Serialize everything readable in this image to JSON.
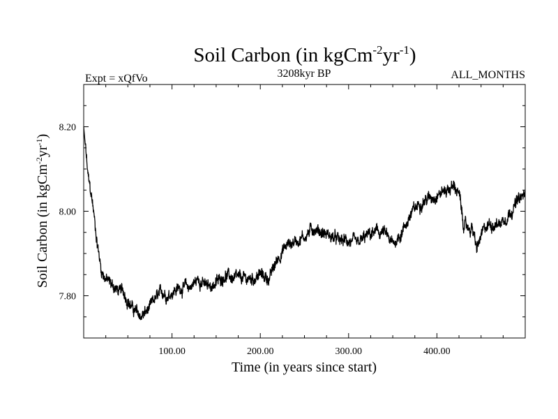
{
  "chart_data": {
    "type": "line",
    "title_main": "Soil Carbon (in kgCm",
    "title_sup1": "-2",
    "title_mid": "yr",
    "title_sup2": "-1",
    "title_end": ")",
    "subtitle_left": "Expt = xQfVo",
    "subtitle_center": "3208kyr BP",
    "subtitle_right": "ALL_MONTHS",
    "xlabel": "Time (in years since start)",
    "ylabel_main": "Soil Carbon (in kgCm",
    "ylabel_sup1": "-2",
    "ylabel_mid": "yr",
    "ylabel_sup2": "-1",
    "ylabel_end": ")",
    "xlim": [
      0,
      500
    ],
    "ylim": [
      7.7,
      8.3
    ],
    "x_ticks_labeled": [
      100,
      200,
      300,
      400
    ],
    "x_tick_labels": [
      "100.00",
      "200.00",
      "300.00",
      "400.00"
    ],
    "y_ticks_labeled": [
      7.8,
      8.0,
      8.2
    ],
    "y_tick_labels": [
      "7.80",
      "8.00",
      "8.20"
    ],
    "series": [
      {
        "name": "Soil Carbon",
        "color": "#000000",
        "x": [
          0,
          5,
          10,
          15,
          20,
          25,
          30,
          35,
          40,
          45,
          50,
          55,
          60,
          65,
          70,
          75,
          80,
          85,
          90,
          95,
          100,
          110,
          120,
          130,
          140,
          150,
          160,
          170,
          180,
          190,
          200,
          210,
          220,
          230,
          240,
          250,
          260,
          270,
          280,
          290,
          300,
          310,
          320,
          330,
          340,
          350,
          360,
          370,
          380,
          390,
          400,
          410,
          420,
          425,
          430,
          435,
          440,
          445,
          450,
          455,
          460,
          470,
          480,
          490,
          500
        ],
        "y": [
          8.2,
          8.08,
          8.02,
          7.93,
          7.86,
          7.84,
          7.83,
          7.82,
          7.81,
          7.81,
          7.79,
          7.77,
          7.76,
          7.75,
          7.76,
          7.77,
          7.79,
          7.8,
          7.81,
          7.8,
          7.81,
          7.82,
          7.82,
          7.84,
          7.82,
          7.83,
          7.85,
          7.84,
          7.84,
          7.84,
          7.85,
          7.84,
          7.89,
          7.92,
          7.93,
          7.94,
          7.96,
          7.95,
          7.94,
          7.93,
          7.93,
          7.92,
          7.94,
          7.95,
          7.95,
          7.92,
          7.95,
          7.99,
          8.02,
          8.03,
          8.04,
          8.05,
          8.06,
          8.04,
          7.97,
          7.96,
          7.96,
          7.91,
          7.94,
          7.96,
          7.97,
          7.97,
          7.99,
          8.02,
          8.04
        ]
      }
    ]
  }
}
